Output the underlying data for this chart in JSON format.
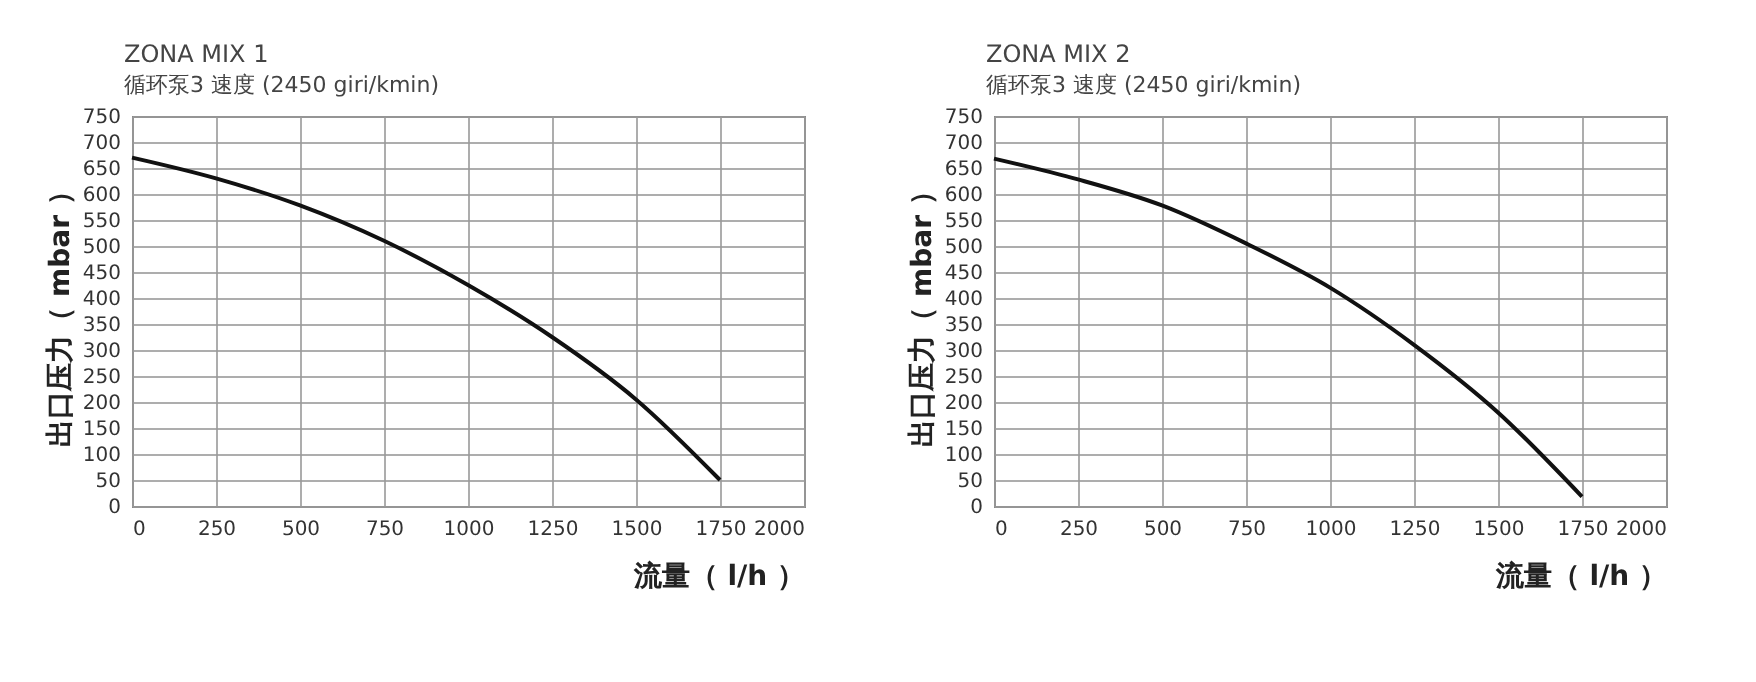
{
  "chart_data": [
    {
      "type": "line",
      "title": "ZONA MIX 1",
      "subtitle": "循环泵3 速度 (2450 giri/kmin)",
      "xlabel": "流量（ l/h ）",
      "ylabel": "出口压力（ mbar ）",
      "x": [
        0,
        250,
        500,
        750,
        1000,
        1250,
        1500,
        1750
      ],
      "values": [
        670,
        630,
        578,
        510,
        425,
        325,
        205,
        50
      ],
      "color": "#111111",
      "line_style": "solid",
      "xlim": [
        0,
        2000
      ],
      "xticks": [
        0,
        250,
        500,
        750,
        1000,
        1250,
        1500,
        1750,
        2000
      ],
      "ylim": [
        0,
        750
      ],
      "yticks": [
        0,
        50,
        100,
        150,
        200,
        250,
        300,
        350,
        400,
        450,
        500,
        550,
        600,
        650,
        700,
        750
      ],
      "grid": true
    },
    {
      "type": "line",
      "title": "ZONA MIX 2",
      "subtitle": "循环泵3 速度 (2450 giri/kmin)",
      "xlabel": "流量（ l/h ）",
      "ylabel": "出口压力（ mbar ）",
      "x": [
        0,
        250,
        500,
        750,
        1000,
        1250,
        1500,
        1750
      ],
      "values": [
        668,
        628,
        578,
        505,
        420,
        310,
        180,
        18
      ],
      "color": "#111111",
      "line_style": "solid",
      "xlim": [
        0,
        2000
      ],
      "xticks": [
        0,
        250,
        500,
        750,
        1000,
        1250,
        1500,
        1750,
        2000
      ],
      "ylim": [
        0,
        750
      ],
      "yticks": [
        0,
        50,
        100,
        150,
        200,
        250,
        300,
        350,
        400,
        450,
        500,
        550,
        600,
        650,
        700,
        750
      ],
      "grid": true
    }
  ]
}
